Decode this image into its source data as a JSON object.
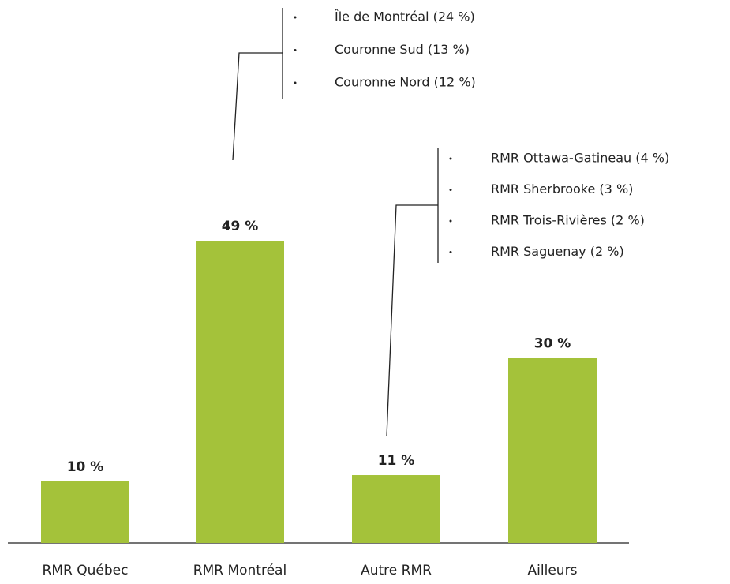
{
  "chart_data": {
    "type": "bar",
    "categories": [
      "RMR Québec",
      "RMR Montréal",
      "Autre RMR",
      "Ailleurs"
    ],
    "values": [
      10,
      49,
      11,
      30
    ],
    "value_labels": [
      "10 %",
      "49 %",
      "11 %",
      "30 %"
    ],
    "color": "#a4c23a",
    "annotations": [
      {
        "items": [
          "Île de Montréal (24 %)",
          "Couronne Sud (13 %)",
          "Couronne Nord (12 %)"
        ]
      },
      {
        "items": [
          "RMR Ottawa-Gatineau (4 %)",
          "RMR Sherbrooke (3 %)",
          "RMR Trois-Rivières (2 %)",
          "RMR Saguenay (2 %)"
        ]
      }
    ]
  }
}
